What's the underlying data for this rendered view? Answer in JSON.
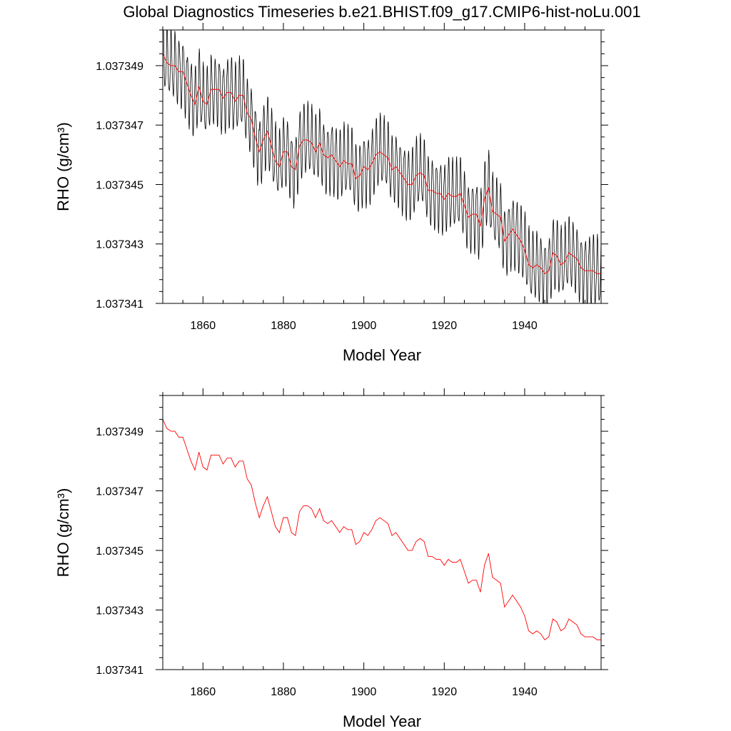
{
  "figure_title": "Global Diagnostics Timeseries b.e21.BHIST.f09_g17.CMIP6-hist-noLu.001",
  "colors": {
    "raw_series": "#000000",
    "smoothed_series": "#ff0000",
    "frame": "#000000",
    "background": "#ffffff"
  },
  "chart_data": [
    {
      "type": "line",
      "xlabel": "Model Year",
      "ylabel": "RHO (g/cm³)",
      "xlim": [
        1850,
        1959
      ],
      "ylim": [
        1.037341,
        1.0373502
      ],
      "x_ticks": [
        1860,
        1880,
        1900,
        1920,
        1940
      ],
      "x_tick_labels": [
        "1860",
        "1880",
        "1900",
        "1920",
        "1940"
      ],
      "y_ticks": [
        1.037341,
        1.037343,
        1.037345,
        1.037347,
        1.037349
      ],
      "y_tick_labels": [
        "1.037341",
        "1.037343",
        "1.037345",
        "1.037347",
        "1.037349"
      ],
      "grid": false,
      "series": [
        {
          "kind": "monthly",
          "color": "#000000",
          "x_start": 1850,
          "x_step": 0.08333,
          "annual_mean_source": "annual_mean",
          "seasonal_amplitude": 1.1e-06
        },
        {
          "kind": "annual",
          "color": "#ff0000",
          "x": "annual_years",
          "y": "annual_mean"
        }
      ]
    },
    {
      "type": "line",
      "xlabel": "Model Year",
      "ylabel": "RHO (g/cm³)",
      "xlim": [
        1850,
        1959
      ],
      "ylim": [
        1.037341,
        1.0373502
      ],
      "x_ticks": [
        1860,
        1880,
        1900,
        1920,
        1940
      ],
      "x_tick_labels": [
        "1860",
        "1880",
        "1900",
        "1920",
        "1940"
      ],
      "y_ticks": [
        1.037341,
        1.037343,
        1.037345,
        1.037347,
        1.037349
      ],
      "y_tick_labels": [
        "1.037341",
        "1.037343",
        "1.037345",
        "1.037347",
        "1.037349"
      ],
      "grid": false,
      "series": [
        {
          "kind": "annual",
          "color": "#ff0000",
          "x": "annual_years",
          "y": "annual_mean"
        }
      ]
    }
  ],
  "annual_years": [
    1850,
    1851,
    1852,
    1853,
    1854,
    1855,
    1856,
    1857,
    1858,
    1859,
    1860,
    1861,
    1862,
    1863,
    1864,
    1865,
    1866,
    1867,
    1868,
    1869,
    1870,
    1871,
    1872,
    1873,
    1874,
    1875,
    1876,
    1877,
    1878,
    1879,
    1880,
    1881,
    1882,
    1883,
    1884,
    1885,
    1886,
    1887,
    1888,
    1889,
    1890,
    1891,
    1892,
    1893,
    1894,
    1895,
    1896,
    1897,
    1898,
    1899,
    1900,
    1901,
    1902,
    1903,
    1904,
    1905,
    1906,
    1907,
    1908,
    1909,
    1910,
    1911,
    1912,
    1913,
    1914,
    1915,
    1916,
    1917,
    1918,
    1919,
    1920,
    1921,
    1922,
    1923,
    1924,
    1925,
    1926,
    1927,
    1928,
    1929,
    1930,
    1931,
    1932,
    1933,
    1934,
    1935,
    1936,
    1937,
    1938,
    1939,
    1940,
    1941,
    1942,
    1943,
    1944,
    1945,
    1946,
    1947,
    1948,
    1949,
    1950,
    1951,
    1952,
    1953,
    1954,
    1955,
    1956,
    1957,
    1958,
    1959
  ],
  "annual_mean": [
    1.0373494,
    1.0373491,
    1.037349,
    1.037349,
    1.0373488,
    1.0373488,
    1.0373484,
    1.037348,
    1.0373477,
    1.0373483,
    1.0373478,
    1.0373477,
    1.0373482,
    1.0373482,
    1.0373482,
    1.0373479,
    1.0373481,
    1.0373481,
    1.0373478,
    1.037348,
    1.037348,
    1.0373474,
    1.0373472,
    1.0373466,
    1.0373461,
    1.0373465,
    1.0373468,
    1.0373463,
    1.0373458,
    1.0373456,
    1.0373461,
    1.0373461,
    1.0373456,
    1.0373455,
    1.0373463,
    1.0373465,
    1.0373465,
    1.0373464,
    1.0373461,
    1.0373464,
    1.037346,
    1.0373459,
    1.037346,
    1.0373458,
    1.0373456,
    1.0373458,
    1.0373457,
    1.0373457,
    1.0373452,
    1.0373453,
    1.0373456,
    1.0373455,
    1.0373457,
    1.037346,
    1.0373461,
    1.037346,
    1.0373459,
    1.0373455,
    1.0373456,
    1.0373454,
    1.0373452,
    1.037345,
    1.037345,
    1.0373453,
    1.0373454,
    1.0373453,
    1.0373448,
    1.0373448,
    1.0373447,
    1.0373447,
    1.0373445,
    1.0373447,
    1.0373446,
    1.0373446,
    1.0373447,
    1.0373443,
    1.0373439,
    1.037344,
    1.037344,
    1.0373436,
    1.0373445,
    1.0373449,
    1.0373441,
    1.037344,
    1.0373439,
    1.0373431,
    1.0373433,
    1.0373435,
    1.0373433,
    1.0373431,
    1.0373428,
    1.0373423,
    1.0373422,
    1.0373423,
    1.0373422,
    1.037342,
    1.0373421,
    1.0373427,
    1.0373426,
    1.0373423,
    1.0373424,
    1.0373427,
    1.0373426,
    1.0373425,
    1.0373422,
    1.0373421,
    1.0373421,
    1.0373421,
    1.037342,
    1.037342
  ]
}
